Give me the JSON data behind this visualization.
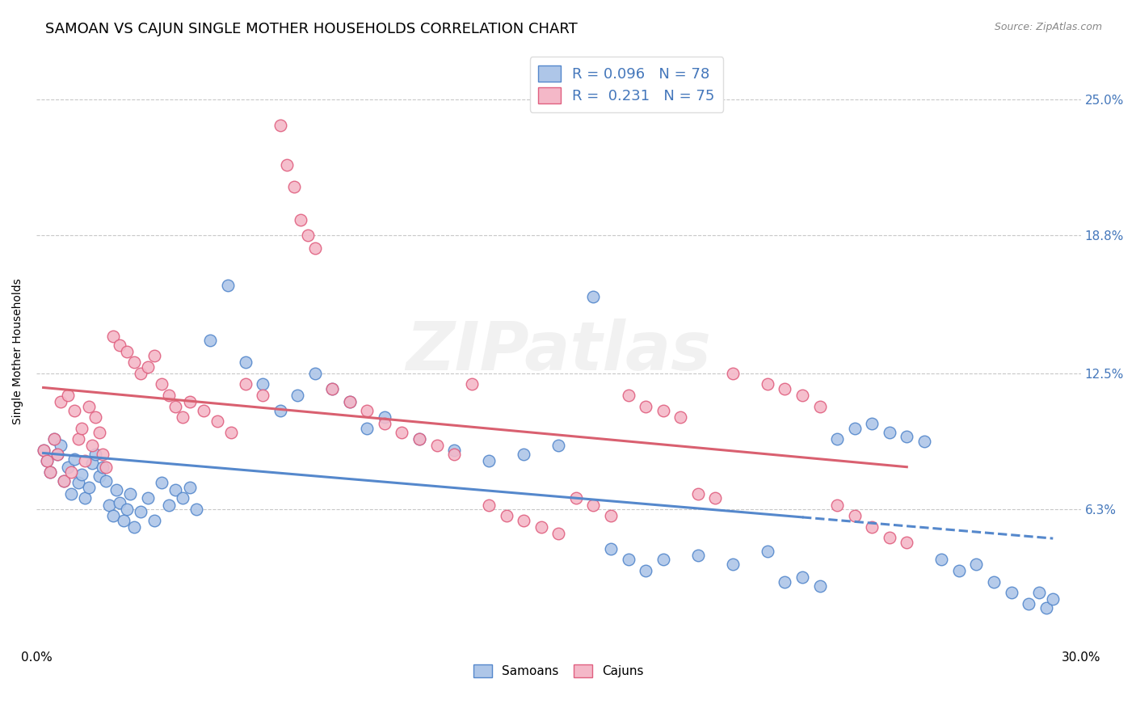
{
  "title": "SAMOAN VS CAJUN SINGLE MOTHER HOUSEHOLDS CORRELATION CHART",
  "source": "Source: ZipAtlas.com",
  "ylabel": "Single Mother Households",
  "ytick_labels": [
    "6.3%",
    "12.5%",
    "18.8%",
    "25.0%"
  ],
  "ytick_values": [
    0.063,
    0.125,
    0.188,
    0.25
  ],
  "xlim": [
    0.0,
    0.3
  ],
  "ylim": [
    0.0,
    0.27
  ],
  "samoan_color": "#aec6e8",
  "cajun_color": "#f4b8c8",
  "samoan_edge_color": "#5588cc",
  "cajun_edge_color": "#e06080",
  "samoan_line_color": "#5588cc",
  "cajun_line_color": "#d96070",
  "background_color": "#ffffff",
  "grid_color": "#c8c8c8",
  "title_fontsize": 13,
  "watermark_text": "ZIPatlas",
  "legend_top_labels": [
    "R = 0.096   N = 78",
    "R =  0.231   N = 75"
  ],
  "legend_bottom_labels": [
    "Samoans",
    "Cajuns"
  ],
  "samoan_x": [
    0.002,
    0.003,
    0.004,
    0.005,
    0.006,
    0.007,
    0.008,
    0.009,
    0.01,
    0.011,
    0.012,
    0.013,
    0.014,
    0.015,
    0.016,
    0.017,
    0.018,
    0.019,
    0.02,
    0.021,
    0.022,
    0.023,
    0.024,
    0.025,
    0.026,
    0.027,
    0.028,
    0.03,
    0.032,
    0.034,
    0.036,
    0.038,
    0.04,
    0.042,
    0.044,
    0.046,
    0.05,
    0.055,
    0.06,
    0.065,
    0.07,
    0.075,
    0.08,
    0.085,
    0.09,
    0.095,
    0.1,
    0.11,
    0.12,
    0.13,
    0.14,
    0.15,
    0.16,
    0.165,
    0.17,
    0.175,
    0.18,
    0.19,
    0.2,
    0.21,
    0.215,
    0.22,
    0.225,
    0.23,
    0.235,
    0.24,
    0.245,
    0.25,
    0.255,
    0.26,
    0.265,
    0.27,
    0.275,
    0.28,
    0.285,
    0.288,
    0.29,
    0.292
  ],
  "samoan_y": [
    0.09,
    0.085,
    0.08,
    0.095,
    0.088,
    0.092,
    0.076,
    0.082,
    0.07,
    0.086,
    0.075,
    0.079,
    0.068,
    0.073,
    0.084,
    0.088,
    0.078,
    0.082,
    0.076,
    0.065,
    0.06,
    0.072,
    0.066,
    0.058,
    0.063,
    0.07,
    0.055,
    0.062,
    0.068,
    0.058,
    0.075,
    0.065,
    0.072,
    0.068,
    0.073,
    0.063,
    0.14,
    0.165,
    0.13,
    0.12,
    0.108,
    0.115,
    0.125,
    0.118,
    0.112,
    0.1,
    0.105,
    0.095,
    0.09,
    0.085,
    0.088,
    0.092,
    0.16,
    0.045,
    0.04,
    0.035,
    0.04,
    0.042,
    0.038,
    0.044,
    0.03,
    0.032,
    0.028,
    0.095,
    0.1,
    0.102,
    0.098,
    0.096,
    0.094,
    0.04,
    0.035,
    0.038,
    0.03,
    0.025,
    0.02,
    0.025,
    0.018,
    0.022
  ],
  "cajun_x": [
    0.002,
    0.003,
    0.004,
    0.005,
    0.006,
    0.007,
    0.008,
    0.009,
    0.01,
    0.011,
    0.012,
    0.013,
    0.014,
    0.015,
    0.016,
    0.017,
    0.018,
    0.019,
    0.02,
    0.022,
    0.024,
    0.026,
    0.028,
    0.03,
    0.032,
    0.034,
    0.036,
    0.038,
    0.04,
    0.042,
    0.044,
    0.048,
    0.052,
    0.056,
    0.06,
    0.065,
    0.07,
    0.072,
    0.074,
    0.076,
    0.078,
    0.08,
    0.085,
    0.09,
    0.095,
    0.1,
    0.105,
    0.11,
    0.115,
    0.12,
    0.125,
    0.13,
    0.135,
    0.14,
    0.145,
    0.15,
    0.155,
    0.16,
    0.165,
    0.17,
    0.175,
    0.18,
    0.185,
    0.19,
    0.195,
    0.2,
    0.21,
    0.215,
    0.22,
    0.225,
    0.23,
    0.235,
    0.24,
    0.245,
    0.25
  ],
  "cajun_y": [
    0.09,
    0.085,
    0.08,
    0.095,
    0.088,
    0.112,
    0.076,
    0.115,
    0.08,
    0.108,
    0.095,
    0.1,
    0.085,
    0.11,
    0.092,
    0.105,
    0.098,
    0.088,
    0.082,
    0.142,
    0.138,
    0.135,
    0.13,
    0.125,
    0.128,
    0.133,
    0.12,
    0.115,
    0.11,
    0.105,
    0.112,
    0.108,
    0.103,
    0.098,
    0.12,
    0.115,
    0.238,
    0.22,
    0.21,
    0.195,
    0.188,
    0.182,
    0.118,
    0.112,
    0.108,
    0.102,
    0.098,
    0.095,
    0.092,
    0.088,
    0.12,
    0.065,
    0.06,
    0.058,
    0.055,
    0.052,
    0.068,
    0.065,
    0.06,
    0.115,
    0.11,
    0.108,
    0.105,
    0.07,
    0.068,
    0.125,
    0.12,
    0.118,
    0.115,
    0.11,
    0.065,
    0.06,
    0.055,
    0.05,
    0.048
  ]
}
